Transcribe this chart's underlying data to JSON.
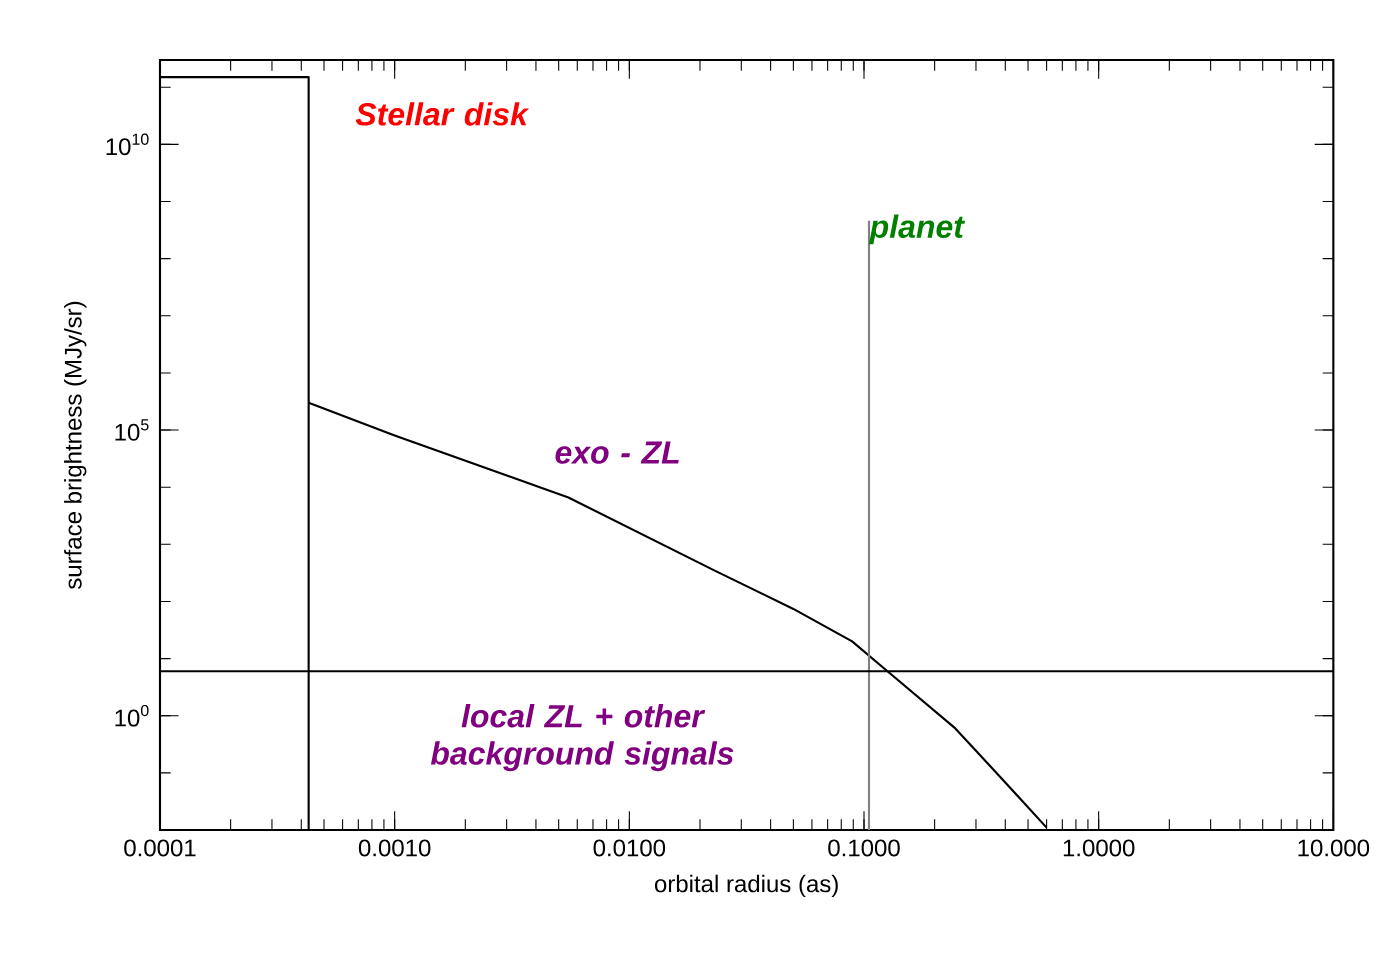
{
  "chart_data": {
    "type": "line",
    "xlabel": "orbital radius (as)",
    "ylabel": "surface brightness (MJy/sr)",
    "log": "xy",
    "grid": false,
    "marker": "none",
    "line_style": "solid",
    "xlim": [
      0.0001,
      10
    ],
    "ylim": [
      0.01,
      300000000000
    ],
    "xticks": [
      {
        "value": 0.0001,
        "label": "0.0001"
      },
      {
        "value": 0.001,
        "label": "0.0010"
      },
      {
        "value": 0.01,
        "label": "0.0100"
      },
      {
        "value": 0.1,
        "label": "0.1000"
      },
      {
        "value": 1,
        "label": "1.0000"
      },
      {
        "value": 10,
        "label": "10.000"
      }
    ],
    "yticks": [
      {
        "value": 1,
        "label": "10$^{0}$"
      },
      {
        "value": 100000,
        "label": "10$^{5}$"
      },
      {
        "value": 10000000000,
        "label": "10$^{10}$"
      }
    ],
    "series": [
      {
        "color": "#000000",
        "x": [
          0.0001,
          0.00043,
          0.00043
        ],
        "values": [
          150000000000,
          150000000000,
          0.01
        ]
      },
      {
        "color": "#000000",
        "x": [
          0.00043,
          0.001,
          0.0055,
          0.023,
          0.05,
          0.089,
          0.123,
          0.245,
          0.4,
          0.6
        ],
        "values": [
          300000,
          80000,
          6600,
          350,
          74,
          20,
          6.5,
          0.6,
          0.068,
          0.011
        ]
      },
      {
        "color": "#808080",
        "x": [
          0.105,
          0.105
        ],
        "values": [
          0.01,
          460000000
        ]
      }
    ],
    "ref_lines": [
      {
        "axis": "y",
        "value": 6,
        "color": "#000000"
      }
    ],
    "annotations": [
      "Stellar disk",
      "exo - ZL",
      "planet",
      "local ZL + other background signals"
    ]
  }
}
